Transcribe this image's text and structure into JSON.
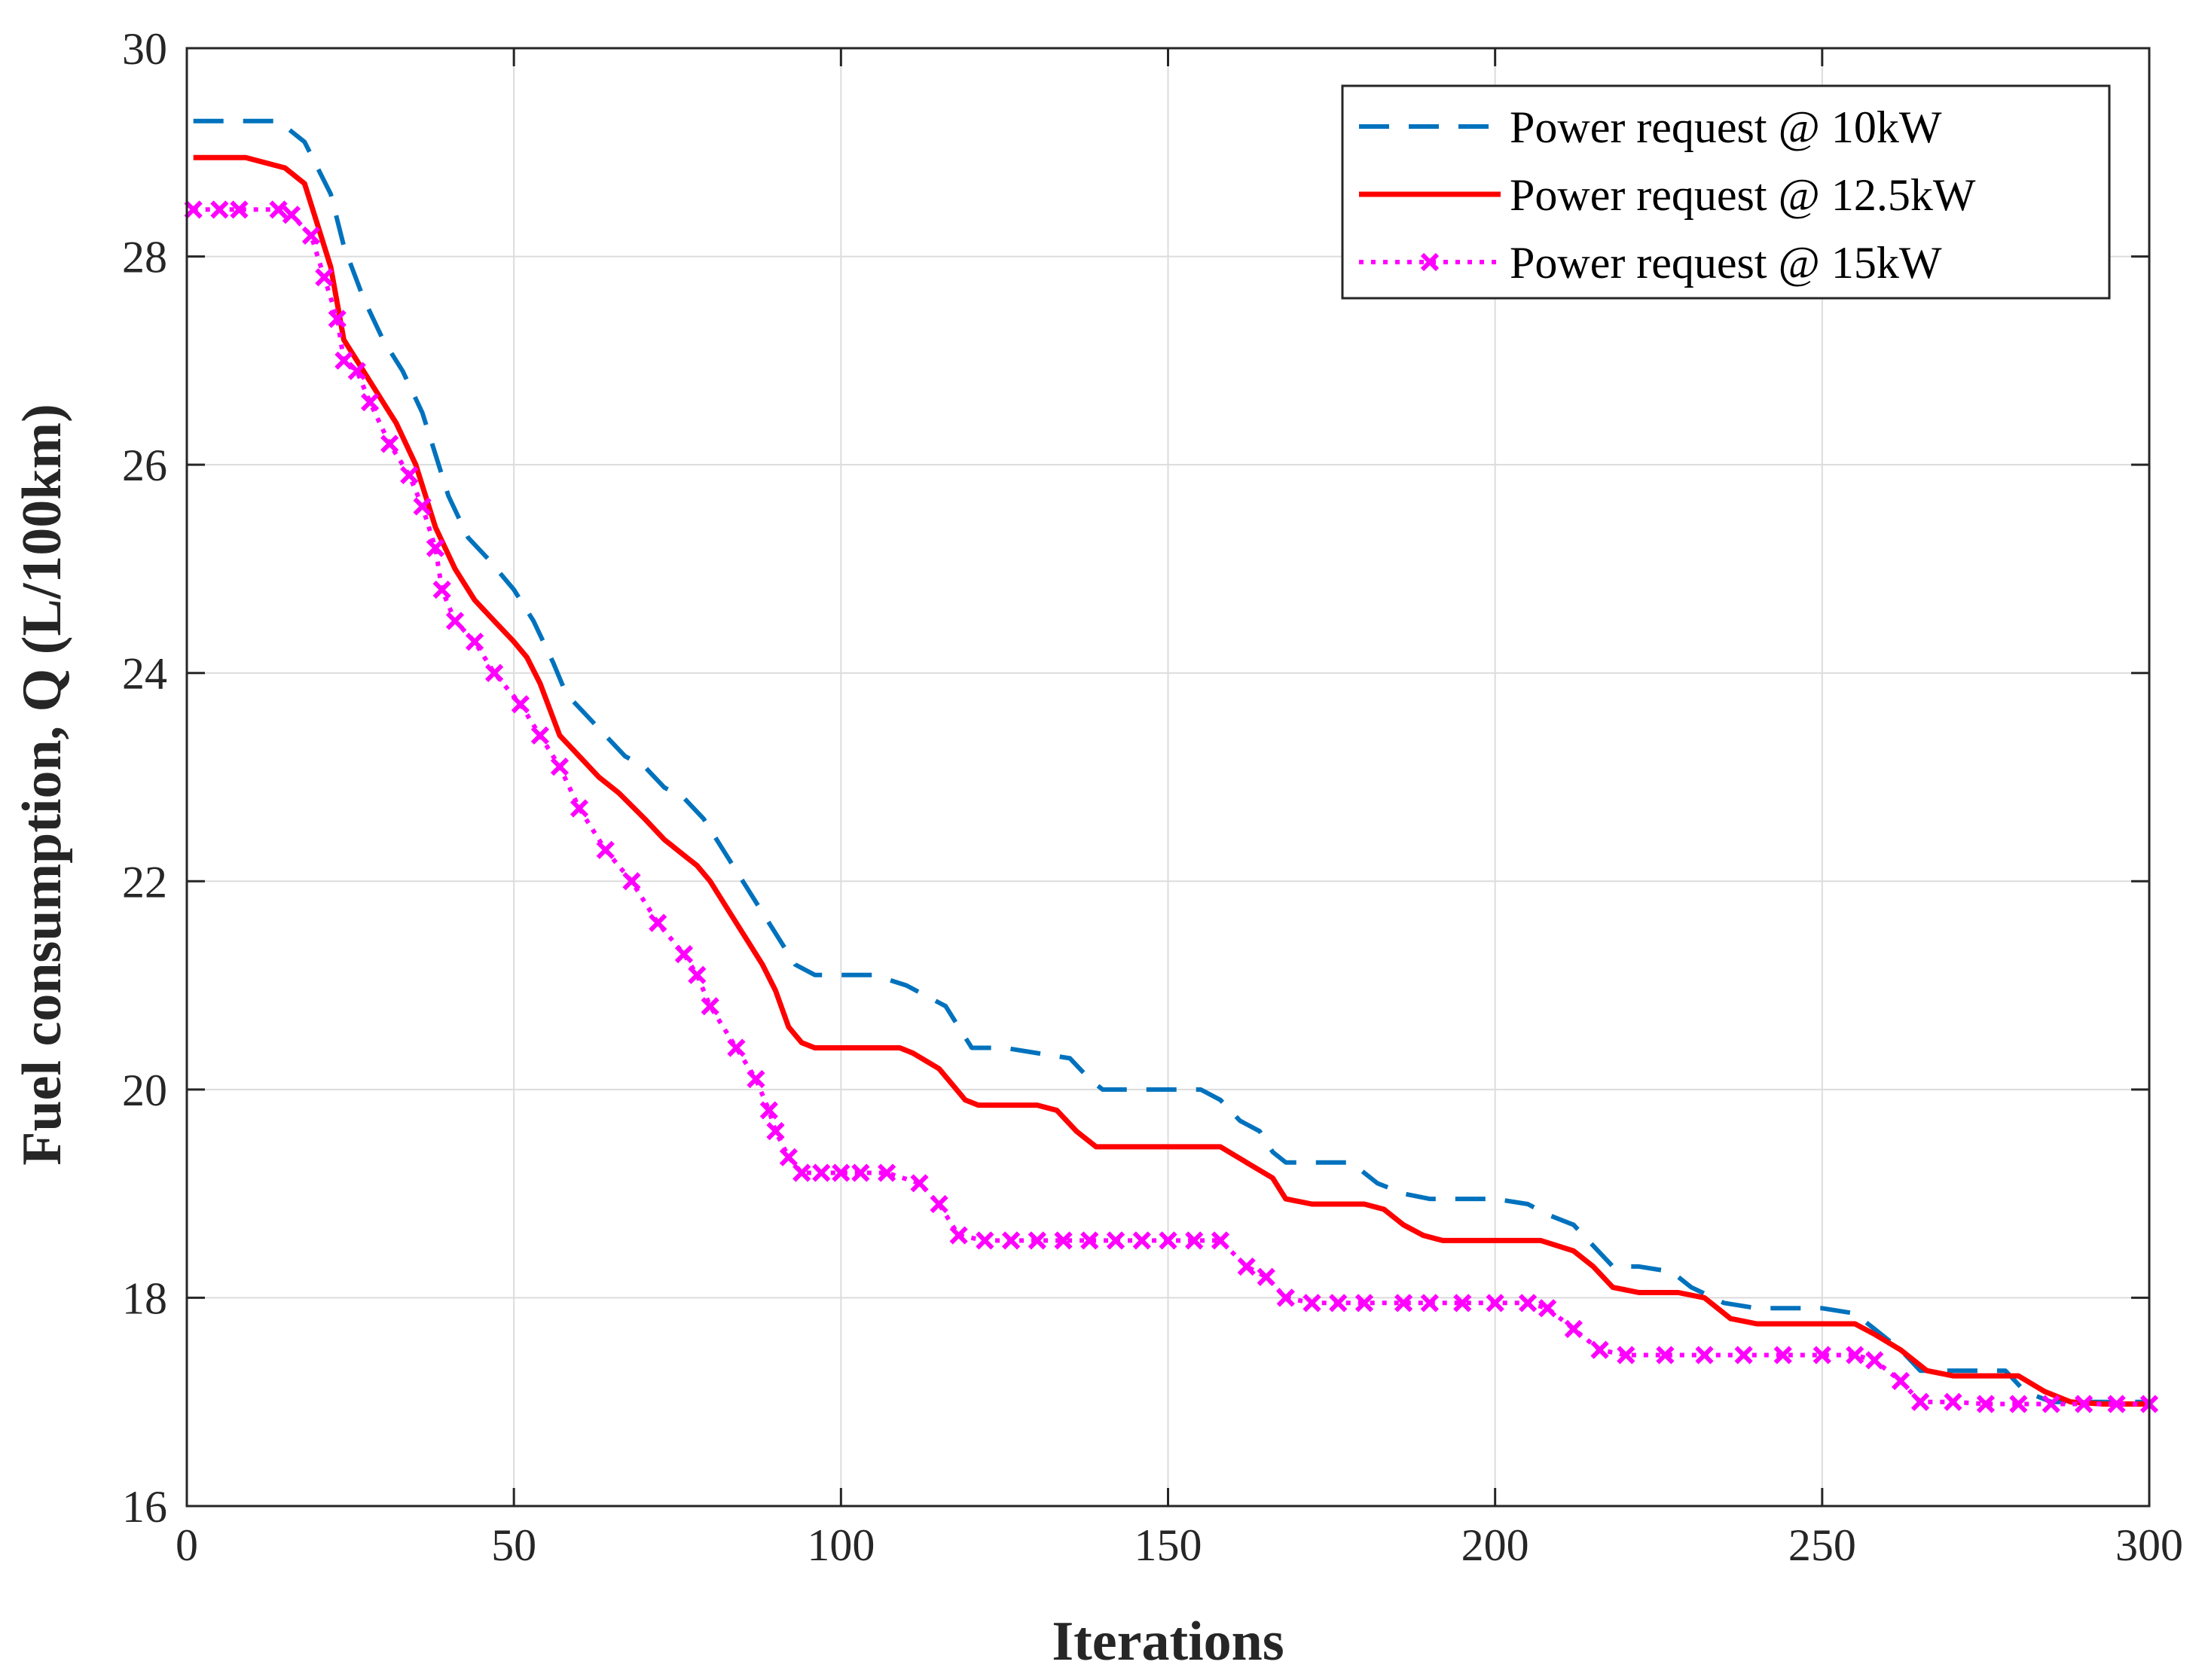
{
  "chart_data": {
    "type": "line",
    "title": "",
    "xlabel": "Iterations",
    "ylabel": "Fuel consumption, Q (L/100km)",
    "xlim": [
      0,
      300
    ],
    "ylim": [
      16,
      30
    ],
    "xticks": [
      0,
      50,
      100,
      150,
      200,
      250,
      300
    ],
    "yticks": [
      16,
      18,
      20,
      22,
      24,
      26,
      28,
      30
    ],
    "xtick_labels": [
      "0",
      "50",
      "100",
      "150",
      "200",
      "250",
      "300"
    ],
    "ytick_labels": [
      "16",
      "18",
      "20",
      "22",
      "24",
      "26",
      "28",
      "30"
    ],
    "grid": true,
    "legend_position": "top-right",
    "series": [
      {
        "name": "Power request @ 10kW",
        "color": "#0072BD",
        "line_style": "dashed",
        "marker": "none",
        "x": [
          1,
          14,
          18,
          22,
          24,
          27,
          30,
          33,
          36,
          38,
          40,
          43,
          46,
          50,
          53,
          56,
          58,
          61,
          64,
          67,
          70,
          73,
          76,
          79,
          82,
          85,
          88,
          90,
          93,
          96,
          105,
          110,
          113,
          116,
          118,
          120,
          125,
          130,
          135,
          138,
          140,
          145,
          150,
          155,
          158,
          161,
          164,
          166,
          168,
          172,
          178,
          182,
          186,
          190,
          195,
          200,
          205,
          208,
          212,
          215,
          218,
          222,
          227,
          230,
          235,
          240,
          245,
          250,
          255,
          258,
          262,
          265,
          268,
          273,
          278,
          281,
          285,
          290,
          300
        ],
        "y": [
          29.3,
          29.3,
          29.1,
          28.6,
          28.1,
          27.6,
          27.2,
          26.9,
          26.5,
          26.1,
          25.7,
          25.3,
          25.1,
          24.8,
          24.5,
          24.1,
          23.8,
          23.6,
          23.4,
          23.2,
          23.1,
          22.9,
          22.8,
          22.6,
          22.3,
          22.0,
          21.7,
          21.5,
          21.2,
          21.1,
          21.1,
          21.0,
          20.9,
          20.8,
          20.6,
          20.4,
          20.4,
          20.35,
          20.3,
          20.1,
          20.0,
          20.0,
          20.0,
          20.0,
          19.9,
          19.7,
          19.6,
          19.4,
          19.3,
          19.3,
          19.3,
          19.1,
          19.0,
          18.95,
          18.95,
          18.95,
          18.9,
          18.8,
          18.7,
          18.5,
          18.3,
          18.3,
          18.25,
          18.1,
          17.95,
          17.9,
          17.9,
          17.9,
          17.85,
          17.7,
          17.5,
          17.3,
          17.3,
          17.3,
          17.3,
          17.1,
          17.0,
          17.0,
          17.0
        ]
      },
      {
        "name": "Power request @ 12.5kW",
        "color": "#FF0000",
        "line_style": "solid",
        "marker": "none",
        "x": [
          1,
          9,
          12,
          15,
          18,
          20,
          22,
          24,
          26,
          28,
          30,
          32,
          35,
          38,
          41,
          44,
          47,
          50,
          52,
          54,
          57,
          60,
          63,
          66,
          70,
          73,
          76,
          78,
          80,
          83,
          86,
          88,
          90,
          92,
          94,
          96,
          100,
          105,
          109,
          111,
          115,
          119,
          121,
          125,
          130,
          133,
          136,
          139,
          141,
          145,
          150,
          155,
          158,
          162,
          166,
          168,
          172,
          176,
          180,
          183,
          186,
          189,
          192,
          197,
          202,
          207,
          212,
          215,
          218,
          222,
          228,
          232,
          236,
          240,
          245,
          250,
          255,
          258,
          262,
          266,
          270,
          275,
          280,
          284,
          288,
          293,
          300
        ],
        "y": [
          28.95,
          28.95,
          28.9,
          28.85,
          28.7,
          28.3,
          27.9,
          27.2,
          27.0,
          26.8,
          26.6,
          26.4,
          26.0,
          25.4,
          25.0,
          24.7,
          24.5,
          24.3,
          24.15,
          23.9,
          23.4,
          23.2,
          23.0,
          22.85,
          22.6,
          22.4,
          22.25,
          22.15,
          22.0,
          21.7,
          21.4,
          21.2,
          20.95,
          20.6,
          20.45,
          20.4,
          20.4,
          20.4,
          20.4,
          20.35,
          20.2,
          19.9,
          19.85,
          19.85,
          19.85,
          19.8,
          19.6,
          19.45,
          19.45,
          19.45,
          19.45,
          19.45,
          19.45,
          19.3,
          19.15,
          18.95,
          18.9,
          18.9,
          18.9,
          18.85,
          18.7,
          18.6,
          18.55,
          18.55,
          18.55,
          18.55,
          18.45,
          18.3,
          18.1,
          18.05,
          18.05,
          18.0,
          17.8,
          17.75,
          17.75,
          17.75,
          17.75,
          17.65,
          17.5,
          17.3,
          17.25,
          17.25,
          17.25,
          17.1,
          17.0,
          16.98,
          16.98
        ]
      },
      {
        "name": "Power request @ 15kW",
        "color": "#FF00FF",
        "line_style": "dotted",
        "marker": "x",
        "x": [
          1,
          5,
          8,
          14,
          16,
          19,
          21,
          23,
          24,
          26,
          28,
          31,
          34,
          36,
          38,
          39,
          41,
          44,
          47,
          51,
          54,
          57,
          60,
          64,
          68,
          72,
          76,
          78,
          80,
          84,
          87,
          89,
          90,
          92,
          94,
          97,
          100,
          103,
          107,
          112,
          115,
          118,
          122,
          126,
          130,
          134,
          138,
          142,
          146,
          150,
          154,
          158,
          162,
          165,
          168,
          172,
          176,
          180,
          186,
          190,
          195,
          200,
          205,
          208,
          212,
          216,
          220,
          226,
          232,
          238,
          244,
          250,
          255,
          258,
          262,
          265,
          270,
          275,
          280,
          285,
          290,
          295,
          300
        ],
        "y": [
          28.45,
          28.45,
          28.45,
          28.45,
          28.4,
          28.2,
          27.8,
          27.4,
          27.0,
          26.9,
          26.6,
          26.2,
          25.9,
          25.6,
          25.2,
          24.8,
          24.5,
          24.3,
          24.0,
          23.7,
          23.4,
          23.1,
          22.7,
          22.3,
          22.0,
          21.6,
          21.3,
          21.1,
          20.8,
          20.4,
          20.1,
          19.8,
          19.6,
          19.35,
          19.2,
          19.2,
          19.2,
          19.2,
          19.2,
          19.1,
          18.9,
          18.6,
          18.55,
          18.55,
          18.55,
          18.55,
          18.55,
          18.55,
          18.55,
          18.55,
          18.55,
          18.55,
          18.3,
          18.2,
          18.0,
          17.95,
          17.95,
          17.95,
          17.95,
          17.95,
          17.95,
          17.95,
          17.95,
          17.9,
          17.7,
          17.5,
          17.45,
          17.45,
          17.45,
          17.45,
          17.45,
          17.45,
          17.45,
          17.4,
          17.2,
          17.0,
          17.0,
          16.98,
          16.98,
          16.98,
          16.98,
          16.98,
          16.98
        ]
      }
    ]
  }
}
